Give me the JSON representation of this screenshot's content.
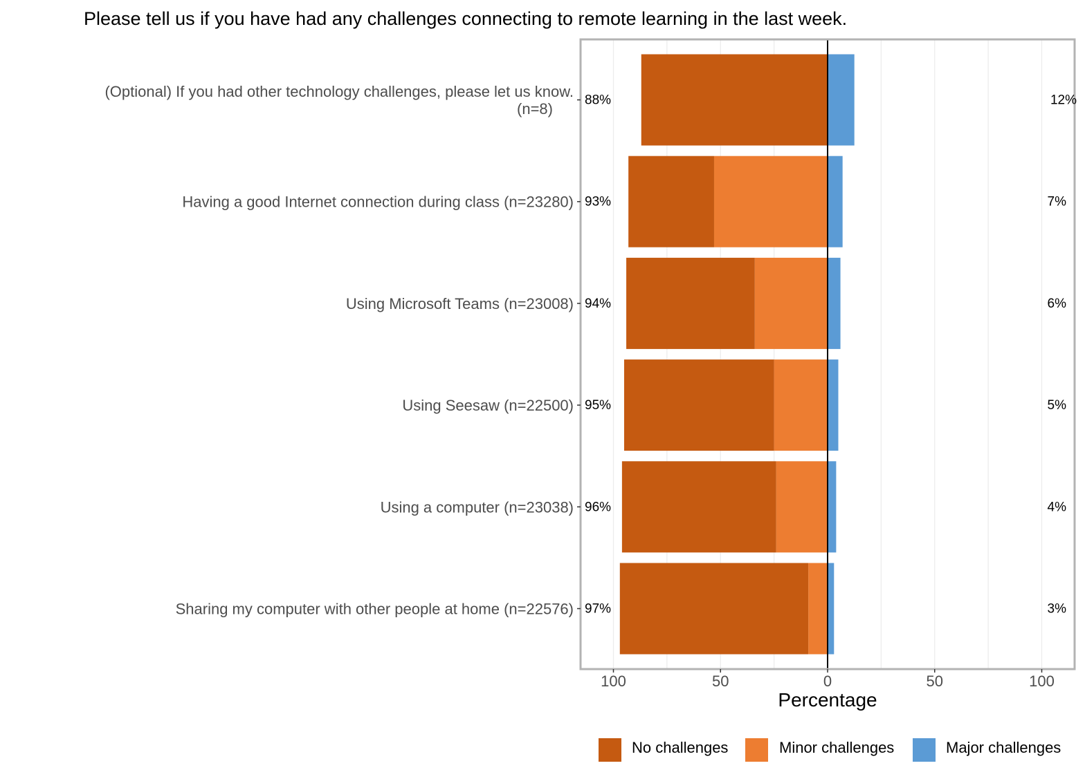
{
  "chart_data": {
    "type": "bar",
    "orientation": "horizontal-diverging",
    "title": "Please tell us if you have had any challenges connecting to remote learning in the last week.",
    "xlabel": "Percentage",
    "xlim": [
      -115,
      115
    ],
    "x_ticks": [
      -100,
      -50,
      0,
      50,
      100
    ],
    "x_tick_labels": [
      "100",
      "50",
      "0",
      "50",
      "100"
    ],
    "grid": true,
    "legend_position": "bottom",
    "categories": [
      [
        "(Optional) If you had other technology challenges, please let us know.",
        "(n=8)"
      ],
      [
        "Having a good Internet connection during class (n=23280)"
      ],
      [
        "Using Microsoft Teams (n=23008)"
      ],
      [
        "Using Seesaw (n=22500)"
      ],
      [
        "Using a computer (n=23038)"
      ],
      [
        "Sharing my computer with other people at home (n=22576)"
      ]
    ],
    "series": [
      {
        "name": "No challenges",
        "color": "#C55A11",
        "side": "left",
        "values": [
          87,
          40,
          60,
          70,
          72,
          88
        ]
      },
      {
        "name": "Minor challenges",
        "color": "#ED7D31",
        "side": "left",
        "values": [
          0,
          53,
          34,
          25,
          24,
          9
        ]
      },
      {
        "name": "Major challenges",
        "color": "#5B9BD5",
        "side": "right",
        "values": [
          12.5,
          7,
          6,
          5,
          4,
          3
        ]
      }
    ],
    "left_totals": [
      "88%",
      "93%",
      "94%",
      "95%",
      "96%",
      "97%"
    ],
    "right_totals": [
      "12%",
      "7%",
      "6%",
      "5%",
      "4%",
      "3%"
    ]
  }
}
